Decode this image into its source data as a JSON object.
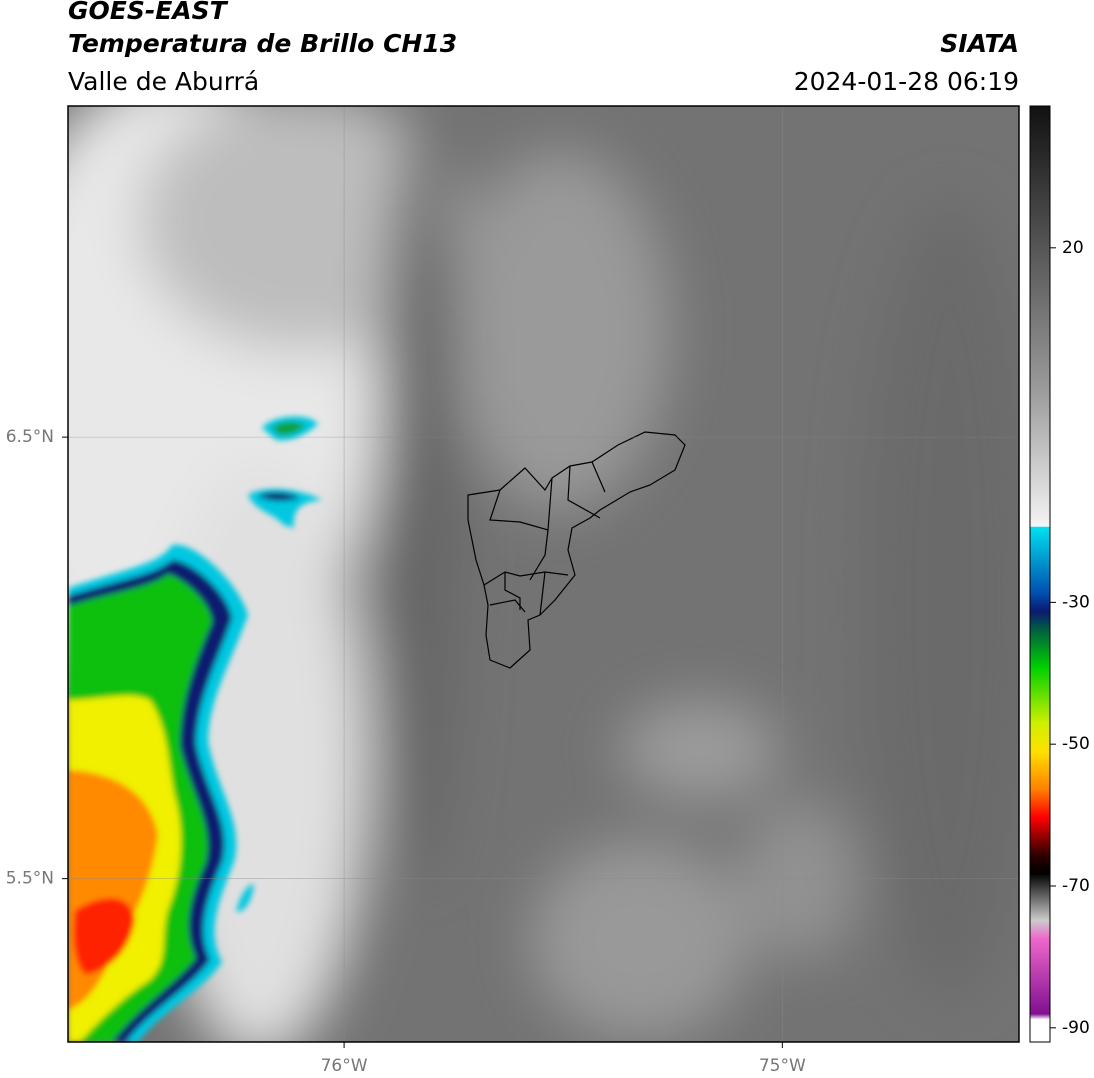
{
  "header": {
    "title": "GOES-EAST",
    "subtitle": "Temperatura de Brillo CH13",
    "region": "Valle de Aburrá",
    "source": "SIATA",
    "timestamp": "2024-01-28 06:19"
  },
  "map": {
    "xlim": [
      -76.63,
      -74.46
    ],
    "ylim": [
      5.13,
      7.25
    ],
    "xticks": [
      {
        "value": -76,
        "label": "76°W"
      },
      {
        "value": -75,
        "label": "75°W"
      }
    ],
    "yticks": [
      {
        "value": 6.5,
        "label": "6.5°N"
      },
      {
        "value": 5.5,
        "label": "5.5°N"
      }
    ],
    "grid": true
  },
  "colorbar": {
    "lim": [
      -92,
      40
    ],
    "ticks": [
      20,
      -30,
      -50,
      -70,
      -90
    ]
  }
}
